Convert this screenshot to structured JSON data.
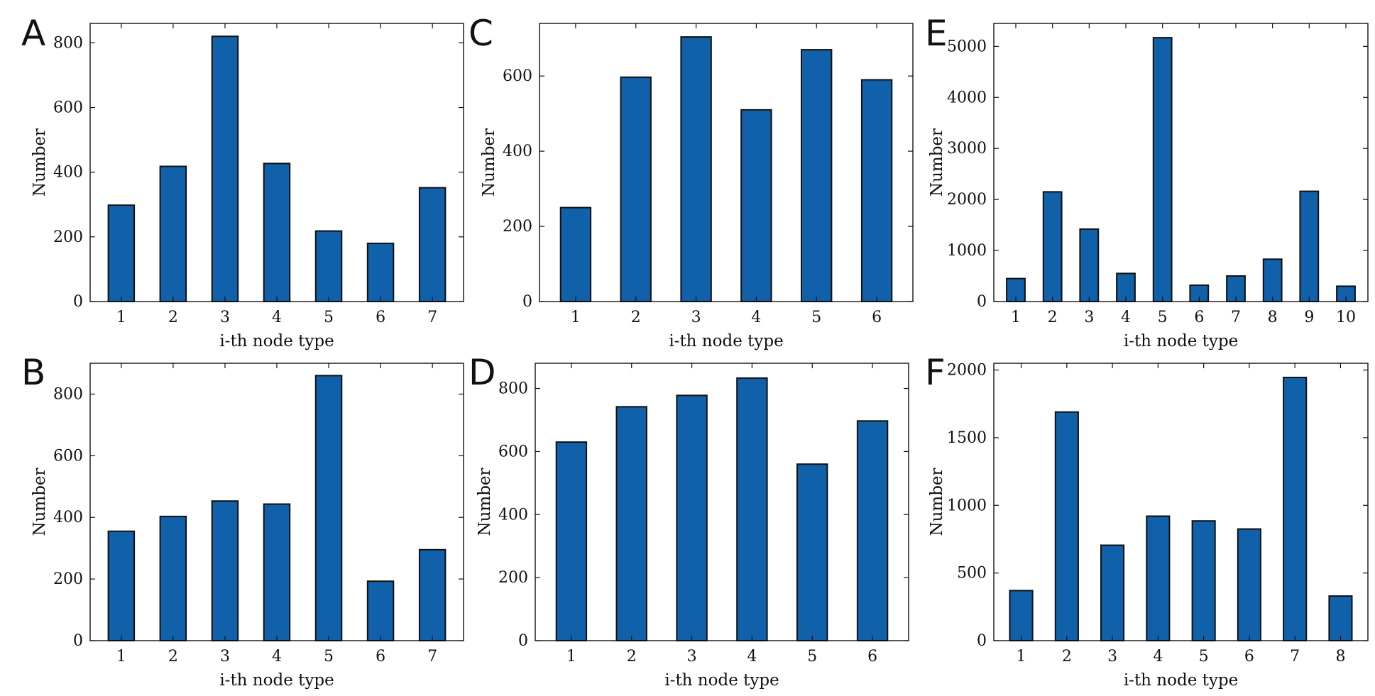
{
  "figure": {
    "bar_color": "#1060aa",
    "edge_color": "#111111",
    "background": "#ffffff"
  },
  "chart_data": [
    {
      "panel": "A",
      "type": "bar",
      "categories": [
        "1",
        "2",
        "3",
        "4",
        "5",
        "6",
        "7"
      ],
      "values": [
        298,
        418,
        820,
        427,
        218,
        180,
        352
      ],
      "xlabel": "i-th node type",
      "ylabel": "Number",
      "ylim": [
        0,
        860
      ],
      "yticks": [
        0,
        200,
        400,
        600,
        800
      ]
    },
    {
      "panel": "C",
      "type": "bar",
      "categories": [
        "1",
        "2",
        "3",
        "4",
        "5",
        "6"
      ],
      "values": [
        250,
        597,
        704,
        510,
        670,
        590
      ],
      "xlabel": "i-th node type",
      "ylabel": "Number",
      "ylim": [
        0,
        740
      ],
      "yticks": [
        0,
        200,
        400,
        600
      ]
    },
    {
      "panel": "E",
      "type": "bar",
      "categories": [
        "1",
        "2",
        "3",
        "4",
        "5",
        "6",
        "7",
        "8",
        "9",
        "10"
      ],
      "values": [
        450,
        2150,
        1420,
        550,
        5170,
        320,
        500,
        830,
        2160,
        300
      ],
      "xlabel": "i-th node type",
      "ylabel": "Number",
      "ylim": [
        0,
        5450
      ],
      "yticks": [
        0,
        1000,
        2000,
        3000,
        4000,
        5000
      ]
    },
    {
      "panel": "B",
      "type": "bar",
      "categories": [
        "1",
        "2",
        "3",
        "4",
        "5",
        "6",
        "7"
      ],
      "values": [
        355,
        403,
        453,
        443,
        860,
        193,
        295
      ],
      "xlabel": "i-th node type",
      "ylabel": "Number",
      "ylim": [
        0,
        900
      ],
      "yticks": [
        0,
        200,
        400,
        600,
        800
      ]
    },
    {
      "panel": "D",
      "type": "bar",
      "categories": [
        "1",
        "2",
        "3",
        "4",
        "5",
        "6"
      ],
      "values": [
        630,
        742,
        778,
        833,
        560,
        697
      ],
      "xlabel": "i-th node type",
      "ylabel": "Number",
      "ylim": [
        0,
        880
      ],
      "yticks": [
        0,
        200,
        400,
        600,
        800
      ]
    },
    {
      "panel": "F",
      "type": "bar",
      "categories": [
        "1",
        "2",
        "3",
        "4",
        "5",
        "6",
        "7",
        "8"
      ],
      "values": [
        370,
        1690,
        705,
        920,
        885,
        825,
        1945,
        330
      ],
      "xlabel": "i-th node type",
      "ylabel": "Number",
      "ylim": [
        0,
        2050
      ],
      "yticks": [
        0,
        500,
        1000,
        1500,
        2000
      ]
    }
  ]
}
